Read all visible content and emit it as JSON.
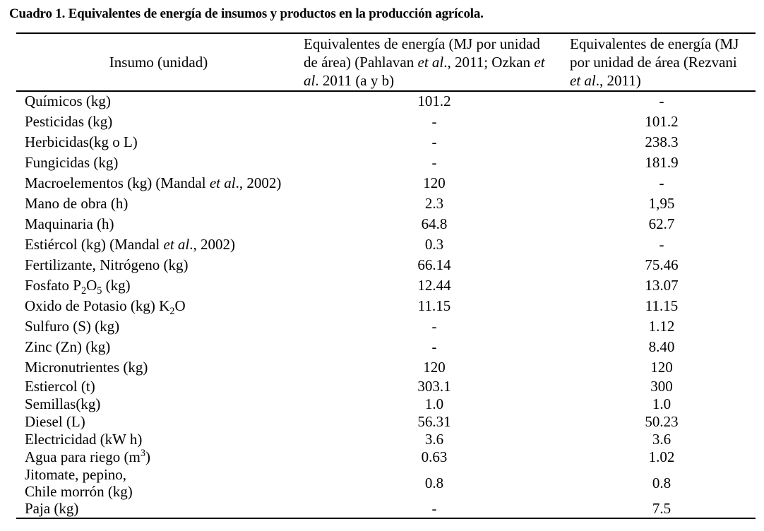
{
  "title": "Cuadro 1. Equivalentes de energía de insumos y productos en la producción agrícola.",
  "table": {
    "columns": [
      {
        "id": "insumo",
        "label_segments": [
          {
            "t": "Insumo (unidad)"
          }
        ]
      },
      {
        "id": "pahlavan_ozkan",
        "label_segments": [
          {
            "t": "Equivalentes de energía (MJ por unidad"
          },
          {
            "br": true
          },
          {
            "t": "de área) (Pahlavan "
          },
          {
            "t": "et al",
            "i": true
          },
          {
            "t": "., 2011; Ozkan "
          },
          {
            "t": "et",
            "i": true
          },
          {
            "br": true
          },
          {
            "t": "al",
            "i": true
          },
          {
            "t": ". 2011 (a y b)"
          }
        ]
      },
      {
        "id": "rezvani",
        "label_segments": [
          {
            "t": "Equivalentes de energía (MJ"
          },
          {
            "br": true
          },
          {
            "t": "por unidad de área (Rezvani"
          },
          {
            "br": true
          },
          {
            "t": "et al",
            "i": true
          },
          {
            "t": "., 2011)"
          }
        ]
      }
    ],
    "rows": [
      {
        "label_segments": [
          {
            "t": "Químicos (kg)"
          }
        ],
        "pahlavan_ozkan": "101.2",
        "rezvani": "-"
      },
      {
        "label_segments": [
          {
            "t": "Pesticidas (kg)"
          }
        ],
        "pahlavan_ozkan": "-",
        "rezvani": "101.2"
      },
      {
        "label_segments": [
          {
            "t": "Herbicidas(kg o L)"
          }
        ],
        "pahlavan_ozkan": "-",
        "rezvani": "238.3"
      },
      {
        "label_segments": [
          {
            "t": "Fungicidas (kg)"
          }
        ],
        "pahlavan_ozkan": "-",
        "rezvani": "181.9"
      },
      {
        "label_segments": [
          {
            "t": "Macroelementos (kg) (Mandal "
          },
          {
            "t": "et al",
            "i": true
          },
          {
            "t": "., 2002)"
          }
        ],
        "pahlavan_ozkan": "120",
        "rezvani": "-"
      },
      {
        "label_segments": [
          {
            "t": "Mano de obra (h)"
          }
        ],
        "pahlavan_ozkan": "2.3",
        "rezvani": "1,95"
      },
      {
        "label_segments": [
          {
            "t": "Maquinaria (h)"
          }
        ],
        "pahlavan_ozkan": "64.8",
        "rezvani": "62.7"
      },
      {
        "label_segments": [
          {
            "t": "Estiércol (kg) (Mandal "
          },
          {
            "t": "et al",
            "i": true
          },
          {
            "t": "., 2002)"
          }
        ],
        "pahlavan_ozkan": "0.3",
        "rezvani": "-"
      },
      {
        "label_segments": [
          {
            "t": "Fertilizante, Nitrógeno (kg)"
          }
        ],
        "pahlavan_ozkan": "66.14",
        "rezvani": "75.46"
      },
      {
        "label_segments": [
          {
            "t": "Fosfato P"
          },
          {
            "t": "2",
            "sub": true
          },
          {
            "t": "O"
          },
          {
            "t": "5",
            "sub": true
          },
          {
            "t": " (kg)"
          }
        ],
        "pahlavan_ozkan": "12.44",
        "rezvani": "13.07"
      },
      {
        "label_segments": [
          {
            "t": "Oxido de Potasio (kg) K"
          },
          {
            "t": "2",
            "sub": true
          },
          {
            "t": "O"
          }
        ],
        "pahlavan_ozkan": "11.15",
        "rezvani": "11.15"
      },
      {
        "label_segments": [
          {
            "t": "Sulfuro (S) (kg)"
          }
        ],
        "pahlavan_ozkan": "-",
        "rezvani": "1.12"
      },
      {
        "label_segments": [
          {
            "t": "Zinc (Zn) (kg)"
          }
        ],
        "pahlavan_ozkan": "-",
        "rezvani": "8.40"
      },
      {
        "label_segments": [
          {
            "t": "Micronutrientes (kg)"
          }
        ],
        "pahlavan_ozkan": "120",
        "rezvani": "120"
      },
      {
        "label_segments": [
          {
            "t": "Estiercol (t)"
          }
        ],
        "pahlavan_ozkan": "303.1",
        "rezvani": "300"
      },
      {
        "label_segments": [
          {
            "t": "Semillas(kg)"
          }
        ],
        "pahlavan_ozkan": "1.0",
        "rezvani": "1.0"
      },
      {
        "label_segments": [
          {
            "t": "Diesel (L)"
          }
        ],
        "pahlavan_ozkan": "56.31",
        "rezvani": "50.23"
      },
      {
        "label_segments": [
          {
            "t": "Electricidad (kW h)"
          }
        ],
        "pahlavan_ozkan": "3.6",
        "rezvani": "3.6"
      },
      {
        "label_segments": [
          {
            "t": "Agua para riego (m"
          },
          {
            "t": "3",
            "sup": true
          },
          {
            "t": ")"
          }
        ],
        "pahlavan_ozkan": "0.63",
        "rezvani": "1.02"
      },
      {
        "label_segments": [
          {
            "t": "Jitomate, pepino,"
          },
          {
            "br": true
          },
          {
            "t": "Chile morrón (kg)"
          }
        ],
        "pahlavan_ozkan": "0.8",
        "rezvani": "0.8"
      },
      {
        "label_segments": [
          {
            "t": "Paja (kg)"
          }
        ],
        "pahlavan_ozkan": "-",
        "rezvani": "7.5"
      }
    ]
  }
}
